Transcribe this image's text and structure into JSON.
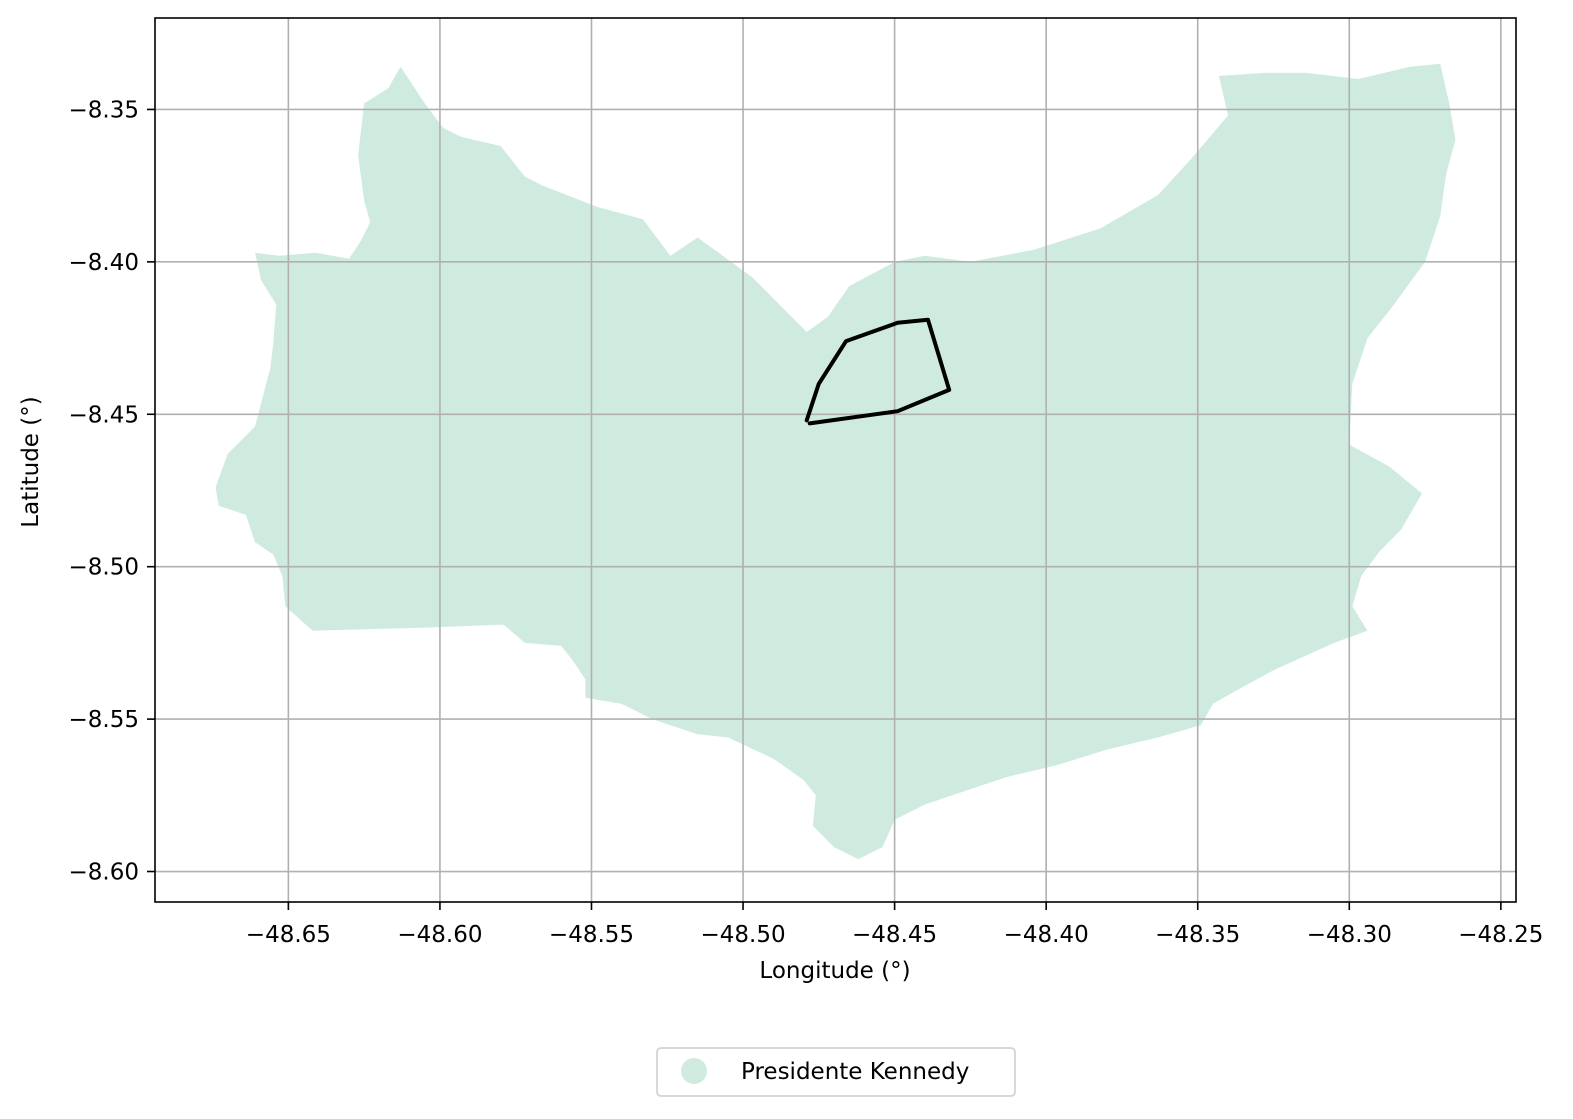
{
  "map": {
    "xlabel": "Longitude (°)",
    "ylabel": "Latitude (°)",
    "xlim": [
      -48.694,
      -48.245
    ],
    "ylim": [
      -8.61,
      -8.32
    ],
    "x_ticks": [
      -48.65,
      -48.6,
      -48.55,
      -48.5,
      -48.45,
      -48.4,
      -48.35,
      -48.3,
      -48.25
    ],
    "x_tick_labels": [
      "−48.65",
      "−48.60",
      "−48.55",
      "−48.50",
      "−48.45",
      "−48.40",
      "−48.35",
      "−48.30",
      "−48.25"
    ],
    "y_ticks": [
      -8.35,
      -8.4,
      -8.45,
      -8.5,
      -8.55,
      -8.6
    ],
    "y_tick_labels": [
      "−8.35",
      "−8.40",
      "−8.45",
      "−8.50",
      "−8.55",
      "−8.60"
    ],
    "grid": true,
    "region": {
      "name": "Presidente Kennedy",
      "color": "#cfebdf",
      "boundary": [
        [
          -48.613,
          -8.336
        ],
        [
          -48.617,
          -8.343
        ],
        [
          -48.625,
          -8.348
        ],
        [
          -48.627,
          -8.365
        ],
        [
          -48.625,
          -8.38
        ],
        [
          -48.623,
          -8.387
        ],
        [
          -48.626,
          -8.393
        ],
        [
          -48.63,
          -8.399
        ],
        [
          -48.641,
          -8.397
        ],
        [
          -48.653,
          -8.398
        ],
        [
          -48.661,
          -8.397
        ],
        [
          -48.659,
          -8.406
        ],
        [
          -48.654,
          -8.414
        ],
        [
          -48.655,
          -8.427
        ],
        [
          -48.656,
          -8.435
        ],
        [
          -48.661,
          -8.454
        ],
        [
          -48.67,
          -8.463
        ],
        [
          -48.674,
          -8.474
        ],
        [
          -48.673,
          -8.48
        ],
        [
          -48.664,
          -8.483
        ],
        [
          -48.661,
          -8.492
        ],
        [
          -48.655,
          -8.496
        ],
        [
          -48.652,
          -8.503
        ],
        [
          -48.651,
          -8.513
        ],
        [
          -48.642,
          -8.521
        ],
        [
          -48.606,
          -8.52
        ],
        [
          -48.579,
          -8.519
        ],
        [
          -48.572,
          -8.525
        ],
        [
          -48.56,
          -8.526
        ],
        [
          -48.556,
          -8.531
        ],
        [
          -48.552,
          -8.537
        ],
        [
          -48.552,
          -8.543
        ],
        [
          -48.54,
          -8.545
        ],
        [
          -48.53,
          -8.55
        ],
        [
          -48.515,
          -8.555
        ],
        [
          -48.505,
          -8.556
        ],
        [
          -48.49,
          -8.563
        ],
        [
          -48.48,
          -8.57
        ],
        [
          -48.476,
          -8.575
        ],
        [
          -48.477,
          -8.585
        ],
        [
          -48.47,
          -8.592
        ],
        [
          -48.462,
          -8.596
        ],
        [
          -48.454,
          -8.592
        ],
        [
          -48.45,
          -8.583
        ],
        [
          -48.44,
          -8.578
        ],
        [
          -48.428,
          -8.574
        ],
        [
          -48.413,
          -8.569
        ],
        [
          -48.396,
          -8.565
        ],
        [
          -48.38,
          -8.56
        ],
        [
          -48.363,
          -8.556
        ],
        [
          -48.349,
          -8.552
        ],
        [
          -48.345,
          -8.545
        ],
        [
          -48.338,
          -8.541
        ],
        [
          -48.325,
          -8.534
        ],
        [
          -48.305,
          -8.525
        ],
        [
          -48.294,
          -8.521
        ],
        [
          -48.299,
          -8.513
        ],
        [
          -48.296,
          -8.503
        ],
        [
          -48.29,
          -8.495
        ],
        [
          -48.283,
          -8.488
        ],
        [
          -48.276,
          -8.476
        ],
        [
          -48.287,
          -8.467
        ],
        [
          -48.3,
          -8.46
        ],
        [
          -48.299,
          -8.44
        ],
        [
          -48.294,
          -8.425
        ],
        [
          -48.286,
          -8.415
        ],
        [
          -48.275,
          -8.4
        ],
        [
          -48.27,
          -8.385
        ],
        [
          -48.268,
          -8.371
        ],
        [
          -48.265,
          -8.36
        ],
        [
          -48.267,
          -8.348
        ],
        [
          -48.27,
          -8.335
        ],
        [
          -48.28,
          -8.336
        ],
        [
          -48.297,
          -8.34
        ],
        [
          -48.314,
          -8.338
        ],
        [
          -48.328,
          -8.338
        ],
        [
          -48.343,
          -8.339
        ],
        [
          -48.34,
          -8.352
        ],
        [
          -48.352,
          -8.366
        ],
        [
          -48.363,
          -8.378
        ],
        [
          -48.382,
          -8.389
        ],
        [
          -48.404,
          -8.396
        ],
        [
          -48.425,
          -8.4
        ],
        [
          -48.44,
          -8.398
        ],
        [
          -48.45,
          -8.4
        ],
        [
          -48.465,
          -8.408
        ],
        [
          -48.472,
          -8.418
        ],
        [
          -48.479,
          -8.423
        ],
        [
          -48.497,
          -8.405
        ],
        [
          -48.515,
          -8.392
        ],
        [
          -48.524,
          -8.398
        ],
        [
          -48.533,
          -8.386
        ],
        [
          -48.548,
          -8.382
        ],
        [
          -48.566,
          -8.375
        ],
        [
          -48.572,
          -8.372
        ],
        [
          -48.58,
          -8.362
        ],
        [
          -48.593,
          -8.359
        ],
        [
          -48.599,
          -8.356
        ],
        [
          -48.605,
          -8.348
        ]
      ]
    },
    "outline": {
      "color": "#000000",
      "points": [
        [
          -48.479,
          -8.452
        ],
        [
          -48.475,
          -8.44
        ],
        [
          -48.466,
          -8.426
        ],
        [
          -48.449,
          -8.42
        ],
        [
          -48.439,
          -8.419
        ],
        [
          -48.432,
          -8.442
        ],
        [
          -48.449,
          -8.449
        ],
        [
          -48.478,
          -8.453
        ]
      ]
    },
    "legend": {
      "position": "bottom-center",
      "entries": [
        {
          "label": "Presidente Kennedy",
          "color": "#cfebdf"
        }
      ]
    }
  }
}
